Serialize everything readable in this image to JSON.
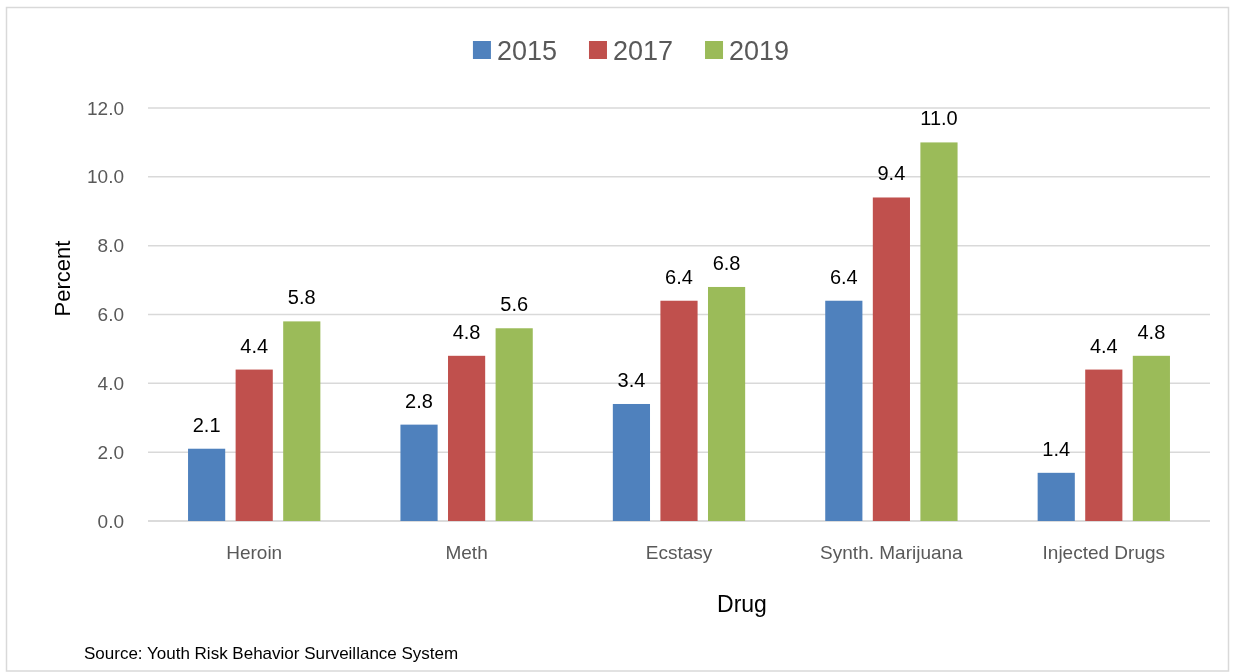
{
  "chart_data": {
    "type": "bar",
    "xlabel": "Drug",
    "ylabel": "Percent",
    "categories": [
      "Heroin",
      "Meth",
      "Ecstasy",
      "Synth. Marijuana",
      "Injected Drugs"
    ],
    "series": [
      {
        "name": "2015",
        "color": "#4f81bd",
        "values": [
          2.1,
          2.8,
          3.4,
          6.4,
          1.4
        ],
        "value_labels": [
          "2.1",
          "2.8",
          "3.4",
          "6.4",
          "1.4"
        ]
      },
      {
        "name": "2017",
        "color": "#c0504d",
        "values": [
          4.4,
          4.8,
          6.4,
          9.4,
          4.4
        ],
        "value_labels": [
          "4.4",
          "4.8",
          "6.4",
          "9.4",
          "4.4"
        ]
      },
      {
        "name": "2019",
        "color": "#9bbb59",
        "values": [
          5.8,
          5.6,
          6.8,
          11.0,
          4.8
        ],
        "value_labels": [
          "5.8",
          "5.6",
          "6.8",
          "11.0",
          "4.8"
        ]
      }
    ],
    "ylim": [
      0,
      12
    ],
    "yticks": [
      {
        "value": 0,
        "label": "0.0"
      },
      {
        "value": 2,
        "label": "2.0"
      },
      {
        "value": 4,
        "label": "4.0"
      },
      {
        "value": 6,
        "label": "6.0"
      },
      {
        "value": 8,
        "label": "8.0"
      },
      {
        "value": 10,
        "label": "10.0"
      },
      {
        "value": 12,
        "label": "12.0"
      }
    ],
    "grid": "y",
    "legend": "top",
    "annotations": [
      "Source: Youth Risk Behavior Surveillance System"
    ]
  }
}
